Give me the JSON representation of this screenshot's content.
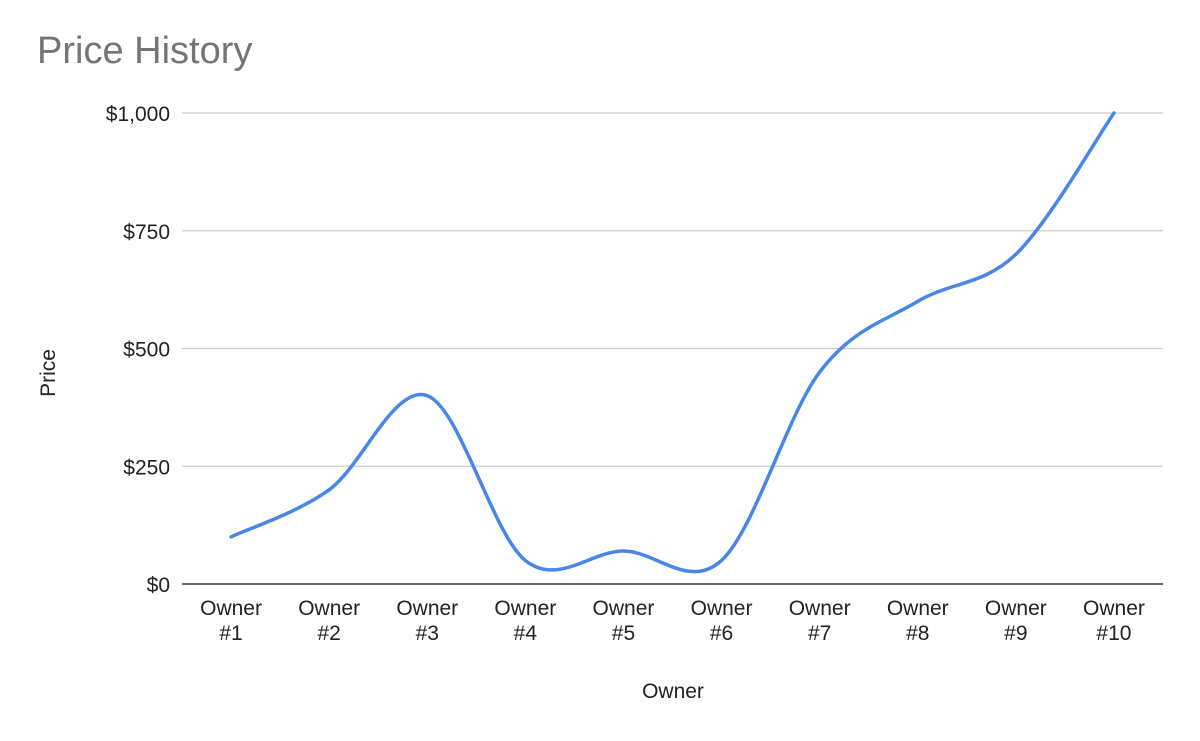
{
  "chart_data": {
    "type": "line",
    "title": "Price History",
    "xlabel": "Owner",
    "ylabel": "Price",
    "categories": [
      [
        "Owner",
        "#1"
      ],
      [
        "Owner",
        "#2"
      ],
      [
        "Owner",
        "#3"
      ],
      [
        "Owner",
        "#4"
      ],
      [
        "Owner",
        "#5"
      ],
      [
        "Owner",
        "#6"
      ],
      [
        "Owner",
        "#7"
      ],
      [
        "Owner",
        "#8"
      ],
      [
        "Owner",
        "#9"
      ],
      [
        "Owner",
        "#10"
      ]
    ],
    "series": [
      {
        "values": [
          100,
          200,
          400,
          50,
          70,
          50,
          450,
          600,
          700,
          1000
        ],
        "color": "#4a86e8"
      }
    ],
    "ylim": [
      0,
      1000
    ],
    "yticks": [
      0,
      250,
      500,
      750,
      1000
    ],
    "ytick_labels": [
      "$0",
      "$250",
      "$500",
      "$750",
      "$1,000"
    ],
    "grid": true,
    "legend": "none",
    "smooth": true,
    "colors": {
      "gridline": "#cccccc",
      "baseline": "#333333"
    }
  }
}
